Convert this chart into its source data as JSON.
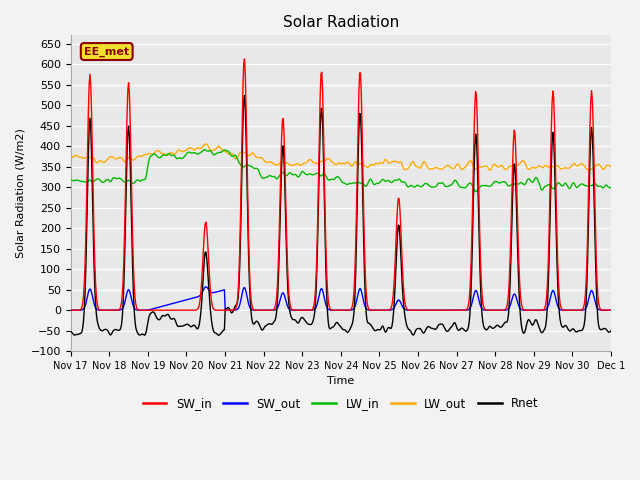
{
  "title": "Solar Radiation",
  "ylabel": "Solar Radiation (W/m2)",
  "xlabel": "Time",
  "ylim": [
    -100,
    670
  ],
  "yticks": [
    -100,
    -50,
    0,
    50,
    100,
    150,
    200,
    250,
    300,
    350,
    400,
    450,
    500,
    550,
    600,
    650
  ],
  "x_tick_labels": [
    "Nov 17",
    "Nov 18",
    "Nov 19",
    "Nov 20",
    "Nov 21",
    "Nov 22",
    "Nov 23",
    "Nov 24",
    "Nov 25",
    "Nov 26",
    "Nov 27",
    "Nov 28",
    "Nov 29",
    "Nov 30",
    "Dec 1"
  ],
  "watermark": "EE_met",
  "colors": {
    "SW_in": "#ff0000",
    "SW_out": "#0000ff",
    "LW_in": "#00bb00",
    "LW_out": "#ffaa00",
    "Rnet": "#000000"
  },
  "bg_color": "#f0f0f0",
  "plot_bg": "#e8e8e8"
}
